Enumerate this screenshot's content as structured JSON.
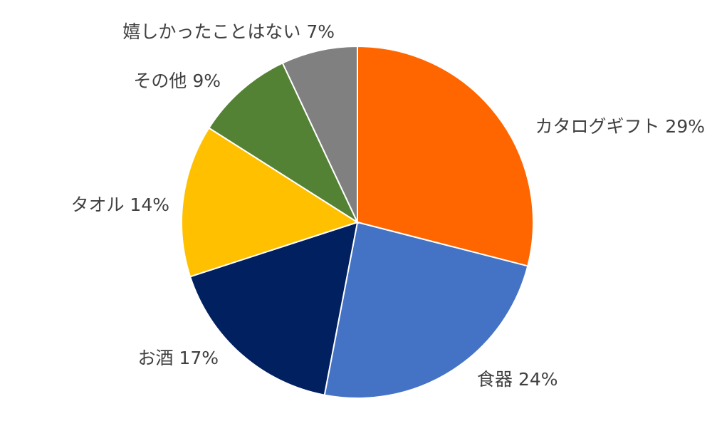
{
  "chart_data": {
    "type": "pie",
    "start_angle": "top",
    "direction": "clockwise",
    "legend": "none",
    "slices": [
      {
        "label": "カタログギフト",
        "value": 29,
        "value_label": "29%",
        "color": "#FF6600"
      },
      {
        "label": "食器",
        "value": 24,
        "value_label": "24%",
        "color": "#4472C4"
      },
      {
        "label": "お酒",
        "value": 17,
        "value_label": "17%",
        "color": "#002060"
      },
      {
        "label": "タオル",
        "value": 14,
        "value_label": "14%",
        "color": "#FFC000"
      },
      {
        "label": "その他",
        "value": 9,
        "value_label": "9%",
        "color": "#548235"
      },
      {
        "label": "嬉しかったことはない",
        "value": 7,
        "value_label": "7%",
        "color": "#808080"
      }
    ]
  }
}
